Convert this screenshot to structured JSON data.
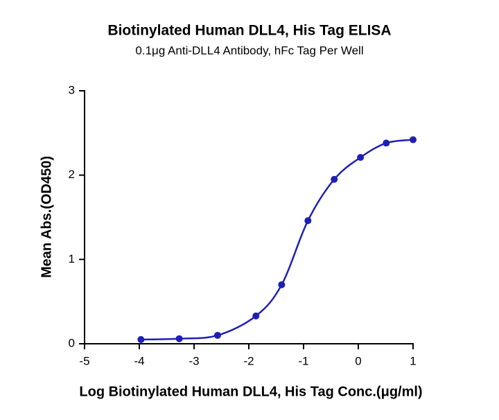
{
  "chart_data": {
    "type": "scatter",
    "title": "Biotinylated Human DLL4, His Tag ELISA",
    "subtitle": "0.1μg Anti-DLL4 Antibody, hFc Tag Per Well",
    "x_label": "Log Biotinylated Human DLL4, His Tag Conc.(μg/ml)",
    "y_label": "Mean Abs.(OD450)",
    "x": [
      -3.97,
      -3.27,
      -2.57,
      -1.87,
      -1.4,
      -0.92,
      -0.44,
      0.04,
      0.51,
      1.0
    ],
    "values": [
      0.05,
      0.06,
      0.1,
      0.33,
      0.7,
      1.46,
      1.95,
      2.21,
      2.38,
      2.42
    ],
    "color": "#1f1fb4",
    "curve": "smooth",
    "xlim": [
      -5,
      1
    ],
    "xticks": [
      -5,
      -4,
      -3,
      -2,
      -1,
      0,
      1
    ],
    "ylim": [
      0,
      3
    ],
    "yticks": [
      0,
      1,
      2,
      3
    ]
  }
}
